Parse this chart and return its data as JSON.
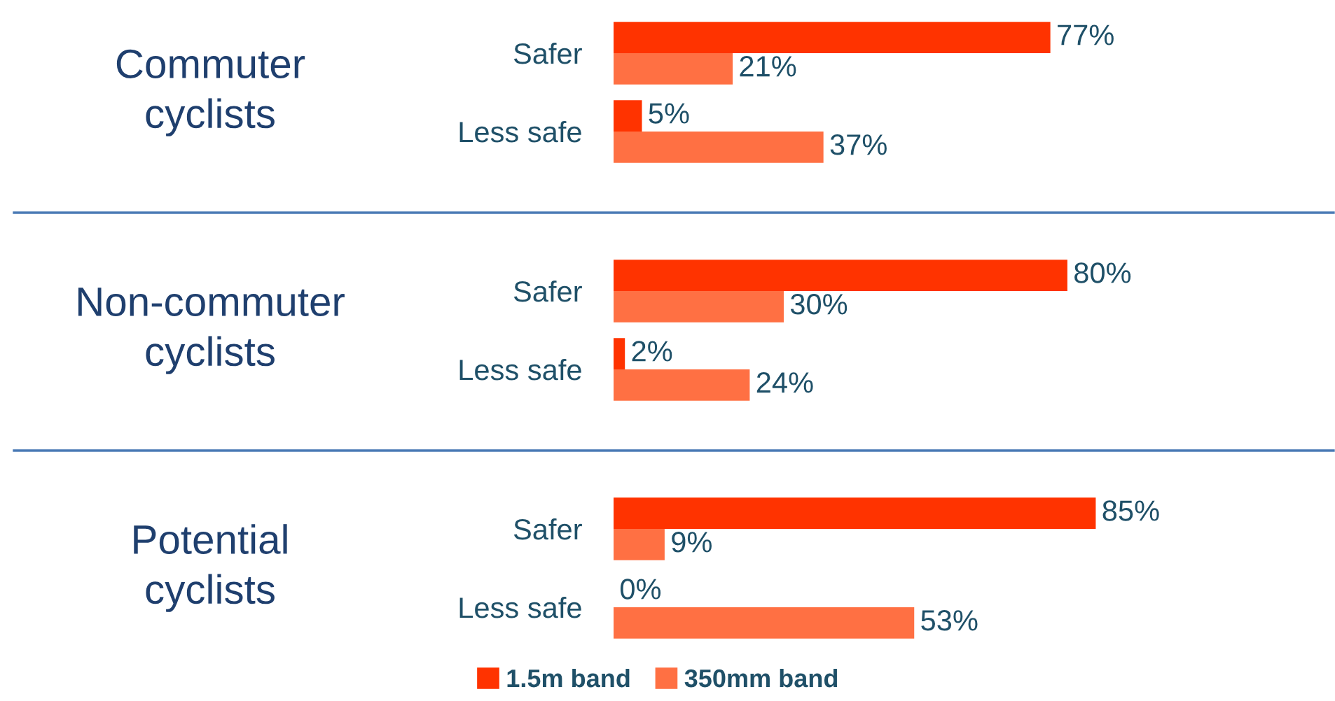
{
  "chart_data": [
    {
      "type": "bar",
      "orientation": "horizontal",
      "title": "Commuter\ncyclists",
      "categories": [
        "Safer",
        "Less safe"
      ],
      "grid": false,
      "legend": false,
      "tick_labels": "y",
      "series": [
        {
          "color": "#ff3300",
          "values": [
            77,
            5
          ],
          "value_labels": [
            "77%",
            "5%"
          ]
        },
        {
          "color": "#ff7043",
          "values": [
            21,
            37
          ],
          "value_labels": [
            "21%",
            "37%"
          ]
        }
      ]
    },
    {
      "type": "bar",
      "orientation": "horizontal",
      "title": "Non-commuter\ncyclists",
      "categories": [
        "Safer",
        "Less safe"
      ],
      "grid": false,
      "legend": false,
      "tick_labels": "y",
      "series": [
        {
          "color": "#ff3300",
          "values": [
            80,
            2
          ],
          "value_labels": [
            "80%",
            "2%"
          ]
        },
        {
          "color": "#ff7043",
          "values": [
            30,
            24
          ],
          "value_labels": [
            "30%",
            "24%"
          ]
        }
      ]
    },
    {
      "type": "bar",
      "orientation": "horizontal",
      "title": "Potential\ncyclists",
      "categories": [
        "Safer",
        "Less safe"
      ],
      "grid": false,
      "legend": "bottom",
      "tick_labels": "y",
      "series": [
        {
          "name": "1.5m band",
          "color": "#ff3300",
          "values": [
            85,
            0
          ],
          "value_labels": [
            "85%",
            "0%"
          ]
        },
        {
          "name": "350mm band",
          "color": "#ff7043",
          "values": [
            9,
            53
          ],
          "value_labels": [
            "9%",
            "53%"
          ]
        }
      ]
    }
  ]
}
